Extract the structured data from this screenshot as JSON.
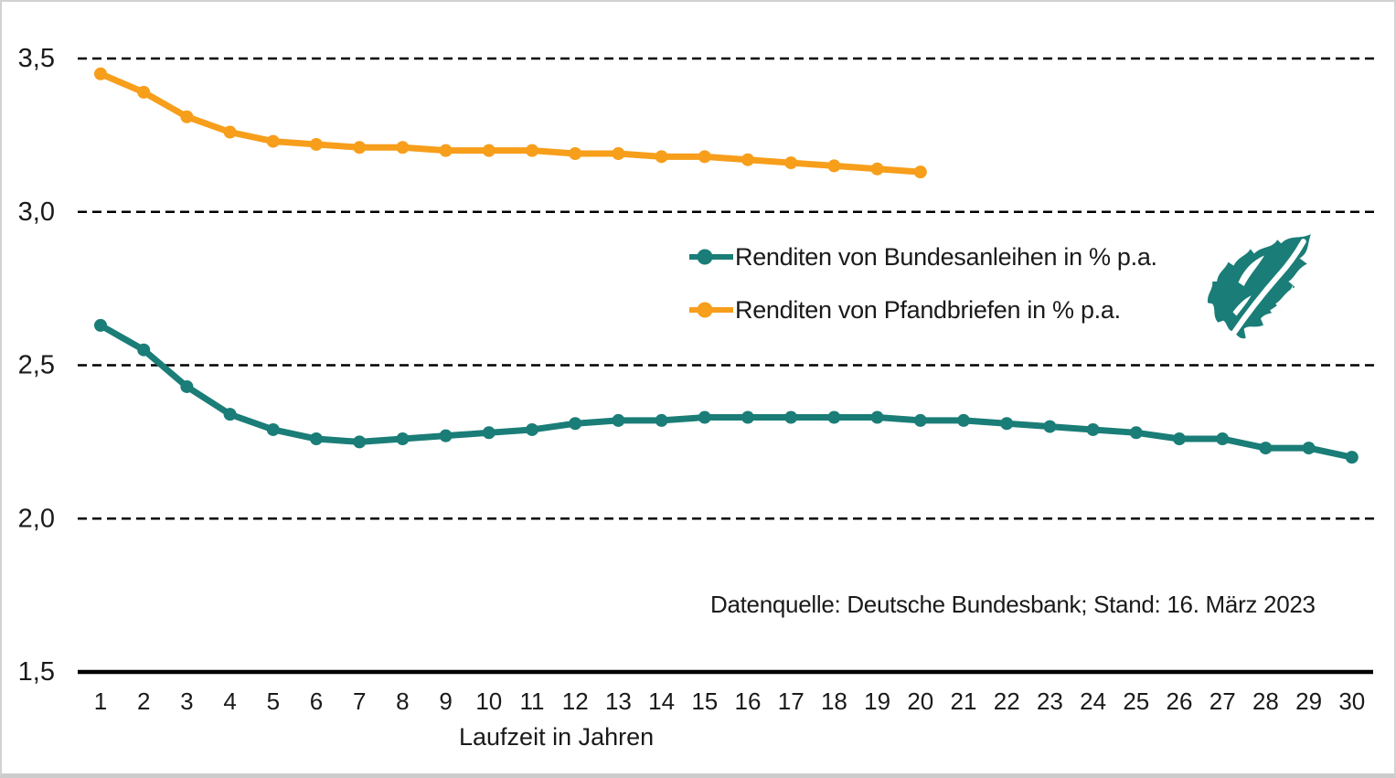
{
  "chart_data": {
    "type": "line",
    "x": [
      1,
      2,
      3,
      4,
      5,
      6,
      7,
      8,
      9,
      10,
      11,
      12,
      13,
      14,
      15,
      16,
      17,
      18,
      19,
      20,
      21,
      22,
      23,
      24,
      25,
      26,
      27,
      28,
      29,
      30
    ],
    "series": [
      {
        "name": "Renditen von Bundesanleihen in % p.a.",
        "color": "#1a7d77",
        "values": [
          2.63,
          2.55,
          2.43,
          2.34,
          2.29,
          2.26,
          2.25,
          2.26,
          2.27,
          2.28,
          2.29,
          2.31,
          2.32,
          2.32,
          2.33,
          2.33,
          2.33,
          2.33,
          2.33,
          2.32,
          2.32,
          2.31,
          2.3,
          2.29,
          2.28,
          2.26,
          2.26,
          2.23,
          2.23,
          2.2
        ]
      },
      {
        "name": "Renditen von Pfandbriefen in % p.a.",
        "color": "#f79e1b",
        "values": [
          3.45,
          3.39,
          3.31,
          3.26,
          3.23,
          3.22,
          3.21,
          3.21,
          3.2,
          3.2,
          3.2,
          3.19,
          3.19,
          3.18,
          3.18,
          3.17,
          3.16,
          3.15,
          3.14,
          3.13
        ]
      }
    ],
    "xlabel": "Laufzeit in Jahren",
    "ylim": [
      1.5,
      3.5
    ],
    "yticks": [
      {
        "value": 1.5,
        "label": "1,5"
      },
      {
        "value": 2.0,
        "label": "2,0"
      },
      {
        "value": 2.5,
        "label": "2,5"
      },
      {
        "value": 3.0,
        "label": "3,0"
      },
      {
        "value": 3.5,
        "label": "3,5"
      }
    ],
    "grid": "horizontal-dashed",
    "legend_position": "center-right",
    "source": "Datenquelle: Deutsche Bundesbank; Stand: 16. März 2023"
  },
  "logo": {
    "name": "finanztip-leaf",
    "color": "#1a7d77"
  }
}
